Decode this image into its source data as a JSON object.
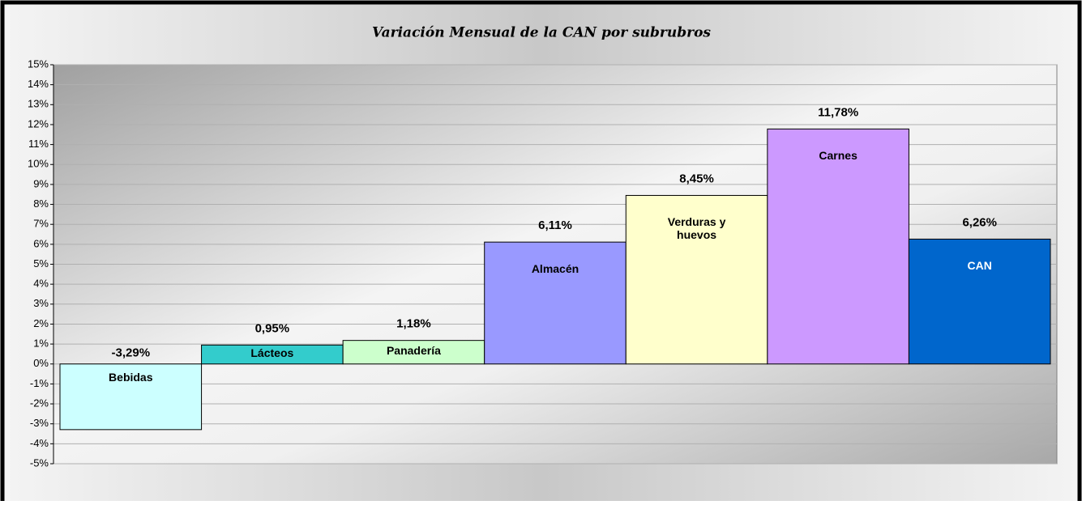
{
  "chart_data": {
    "type": "bar",
    "title": "Variación Mensual de la CAN por subrubros",
    "categories": [
      "Bebidas",
      "Lácteos",
      "Panadería",
      "Almacén",
      "Verduras y huevos",
      "Carnes",
      "CAN"
    ],
    "values": [
      -3.29,
      0.95,
      1.18,
      6.11,
      8.45,
      11.78,
      6.26
    ],
    "value_labels": [
      "-3,29%",
      "0,95%",
      "1,18%",
      "6,11%",
      "8,45%",
      "11,78%",
      "6,26%"
    ],
    "colors": [
      "#ccffff",
      "#33cccc",
      "#ccffcc",
      "#9999ff",
      "#ffffcc",
      "#cc99ff",
      "#0066cc"
    ],
    "ylim": [
      -5,
      15
    ],
    "yticks": [
      {
        "value": -5,
        "label": "-5%"
      },
      {
        "value": -4,
        "label": "-4%"
      },
      {
        "value": -3,
        "label": "-3%"
      },
      {
        "value": -2,
        "label": "-2%"
      },
      {
        "value": -1,
        "label": "-1%"
      },
      {
        "value": 0,
        "label": "0%"
      },
      {
        "value": 1,
        "label": "1%"
      },
      {
        "value": 2,
        "label": "2%"
      },
      {
        "value": 3,
        "label": "3%"
      },
      {
        "value": 4,
        "label": "4%"
      },
      {
        "value": 5,
        "label": "5%"
      },
      {
        "value": 6,
        "label": "6%"
      },
      {
        "value": 7,
        "label": "7%"
      },
      {
        "value": 8,
        "label": "8%"
      },
      {
        "value": 9,
        "label": "9%"
      },
      {
        "value": 10,
        "label": "10%"
      },
      {
        "value": 11,
        "label": "11%"
      },
      {
        "value": 12,
        "label": "12%"
      },
      {
        "value": 13,
        "label": "13%"
      },
      {
        "value": 14,
        "label": "14%"
      },
      {
        "value": 15,
        "label": "15%"
      }
    ],
    "grid": true
  }
}
